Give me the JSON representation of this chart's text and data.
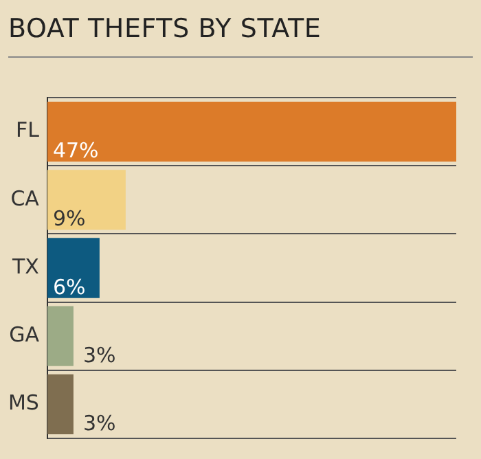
{
  "chart_data": {
    "type": "bar",
    "title": "BOAT THEFTS BY STATE",
    "orientation": "horizontal",
    "categories": [
      "FL",
      "CA",
      "TX",
      "GA",
      "MS"
    ],
    "values": [
      47,
      9,
      6,
      3,
      3
    ],
    "colors": [
      "#dc7b29",
      "#f2d285",
      "#0d5a80",
      "#9cab86",
      "#7f6e50"
    ],
    "value_labels": [
      "47%",
      "9%",
      "6%",
      "3%",
      "3%"
    ],
    "grid": "y"
  }
}
